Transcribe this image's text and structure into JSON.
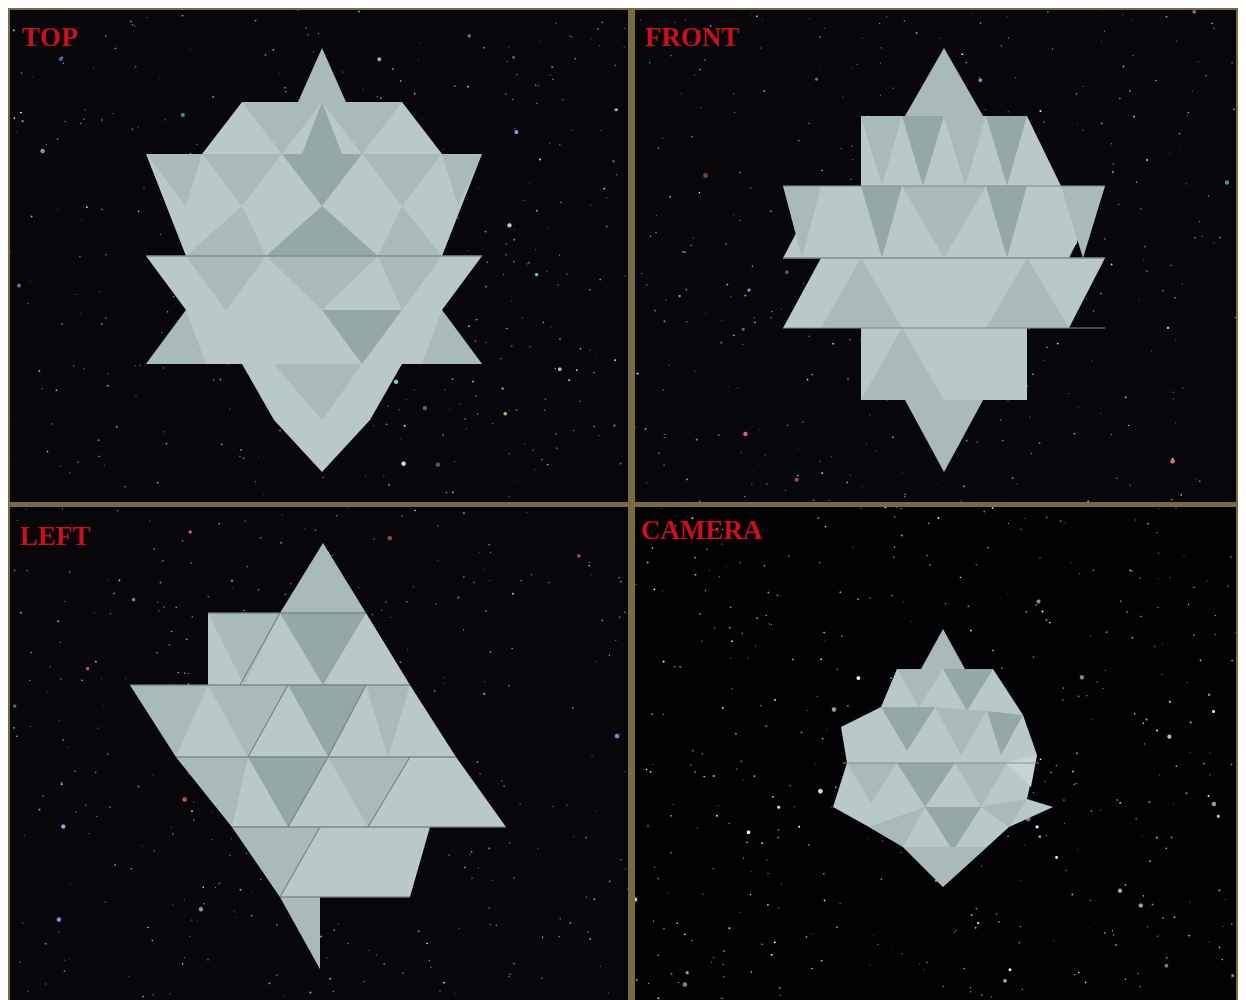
{
  "viewports": [
    {
      "id": "top",
      "label": "TOP"
    },
    {
      "id": "front",
      "label": "FRONT"
    },
    {
      "id": "left",
      "label": "LEFT"
    },
    {
      "id": "camera",
      "label": "CAMERA"
    }
  ],
  "colors": {
    "border": "#7a6a42",
    "background": "#07070b",
    "label": "#cc0f1a",
    "model_light": "#b9c8c8",
    "model_mid": "#a9baba",
    "model_dark": "#95a8a8"
  }
}
